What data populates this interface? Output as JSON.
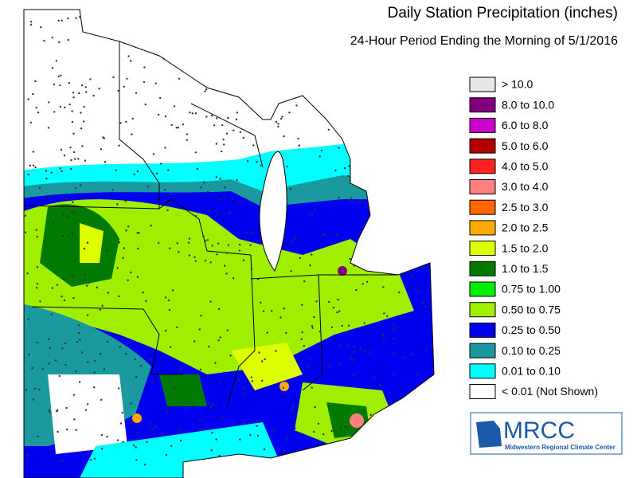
{
  "header": {
    "title": "Daily Station Precipitation (inches)",
    "subtitle": "24-Hour Period Ending the Morning of 5/1/2016"
  },
  "legend": [
    {
      "label": "> 10.0",
      "color": "#e6e6e6"
    },
    {
      "label": "8.0 to 10.0",
      "color": "#800080"
    },
    {
      "label": "6.0 to 8.0",
      "color": "#cc00cc"
    },
    {
      "label": "5.0 to 6.0",
      "color": "#b30000"
    },
    {
      "label": "4.0 to 5.0",
      "color": "#ff2020"
    },
    {
      "label": "3.0 to 4.0",
      "color": "#ff8080"
    },
    {
      "label": "2.5 to 3.0",
      "color": "#ff6600"
    },
    {
      "label": "2.0 to 2.5",
      "color": "#ffaa00"
    },
    {
      "label": "1.5 to 2.0",
      "color": "#ddff00"
    },
    {
      "label": "1.0 to 1.5",
      "color": "#007a00"
    },
    {
      "label": "0.75 to 1.00",
      "color": "#00ee00"
    },
    {
      "label": "0.50 to 0.75",
      "color": "#a0ee00"
    },
    {
      "label": "0.25 to 0.50",
      "color": "#0000ee"
    },
    {
      "label": "0.10 to 0.25",
      "color": "#1a9a9e"
    },
    {
      "label": "0.01 to 0.10",
      "color": "#00ffff"
    },
    {
      "label": "< 0.01 (Not Shown)",
      "color": "#ffffff"
    }
  ],
  "logo": {
    "name": "MRCC",
    "full_name": "Midwestern Regional Climate Center"
  }
}
